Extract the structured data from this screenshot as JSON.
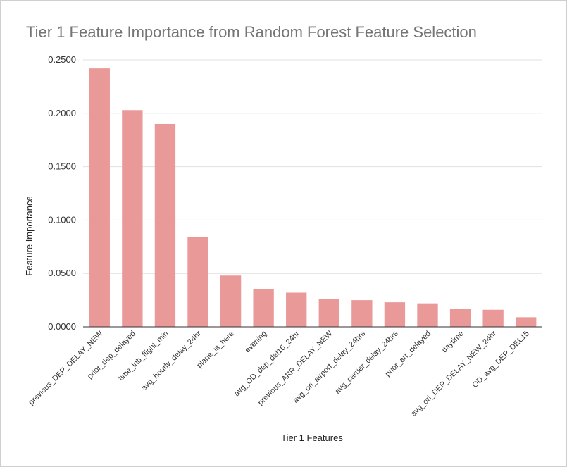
{
  "chart_data": {
    "type": "bar",
    "title": "Tier 1 Feature Importance from Random Forest Feature Selection",
    "xlabel": "Tier 1 Features",
    "ylabel": "Feature Importance",
    "ylim": [
      0,
      0.25
    ],
    "yticks": [
      "0.0000",
      "0.0500",
      "0.1000",
      "0.1500",
      "0.2000",
      "0.2500"
    ],
    "categories": [
      "previous_DEP_DELAY_NEW",
      "prior_dep_delayed",
      "time_inb_flight_min",
      "avg_hourly_delay_24hr",
      "plane_is_here",
      "evening",
      "avg_OD_dep_del15_24hr",
      "previous_ARR_DELAY_NEW",
      "avg_ori_airport_delay_24hrs",
      "avg_carrier_delay_24hrs",
      "prior_arr_delayed",
      "daytime",
      "avg_ori_DEP_DELAY_NEW_24hr",
      "OD_avg_DEP_DEL15"
    ],
    "values": [
      0.242,
      0.203,
      0.19,
      0.084,
      0.048,
      0.035,
      0.032,
      0.026,
      0.025,
      0.023,
      0.022,
      0.017,
      0.016,
      0.009
    ],
    "bar_color": "#ea9999",
    "grid": true
  }
}
